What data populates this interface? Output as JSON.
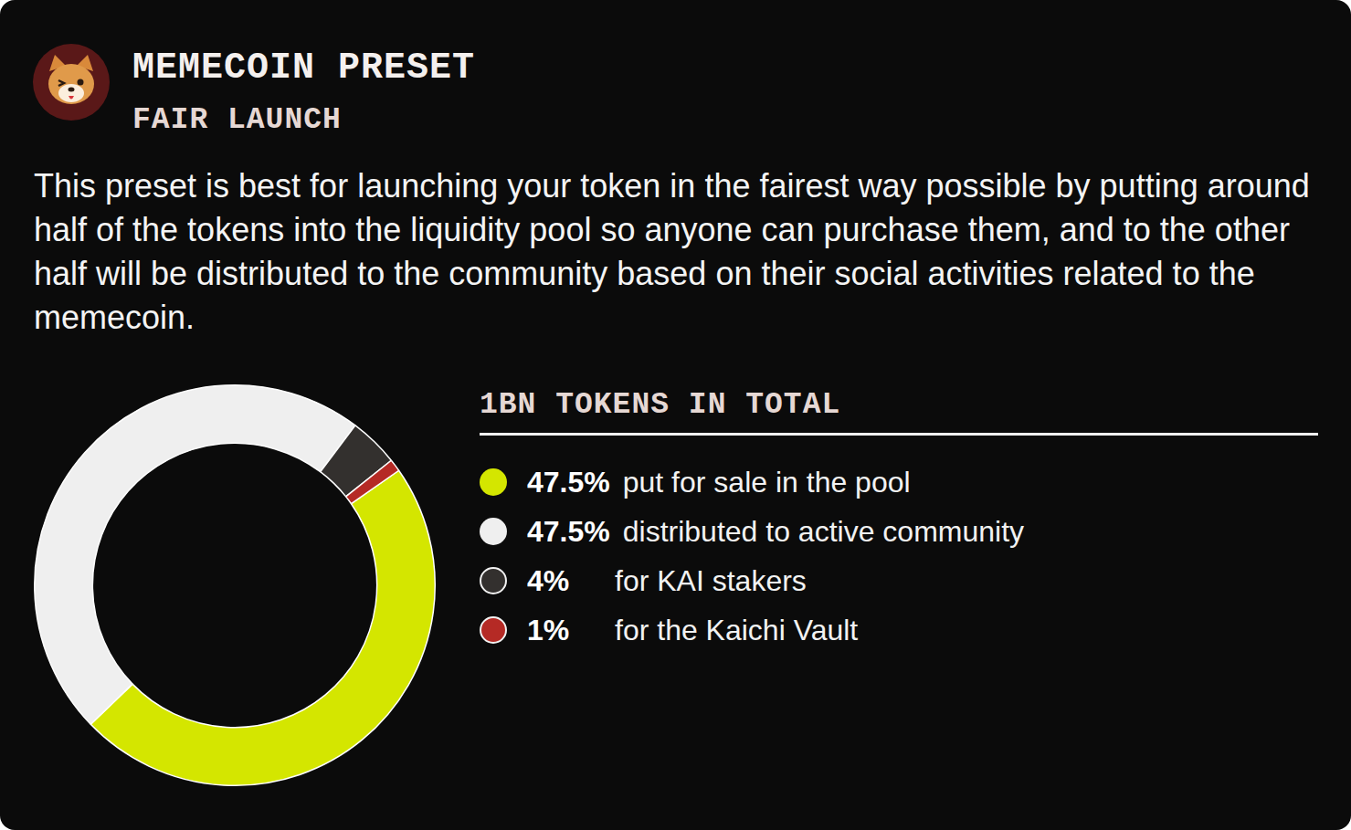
{
  "chart_data": {
    "type": "doughnut",
    "title": "MEMECOIN PRESET",
    "subtitle": "FAIR LAUNCH",
    "annotations": [
      "This preset is best for launching your token in the fairest way possible by putting around half of the tokens into the liquidity pool so anyone can purchase them, and to the other half will be distributed to the community based on their social activities related to the memecoin.",
      "1BN TOKENS IN TOTAL"
    ],
    "categories": [
      "put for sale in the pool",
      "distributed to active community",
      "for KAI stakers",
      "for the Kaichi Vault"
    ],
    "values": [
      47.5,
      47.5,
      4,
      1
    ],
    "value_labels": [
      "47.5%",
      "47.5%",
      "4%",
      "1%"
    ],
    "colors": [
      "#d4e600",
      "#efefef",
      "#33302e",
      "#b52a25"
    ],
    "legend": "right"
  }
}
